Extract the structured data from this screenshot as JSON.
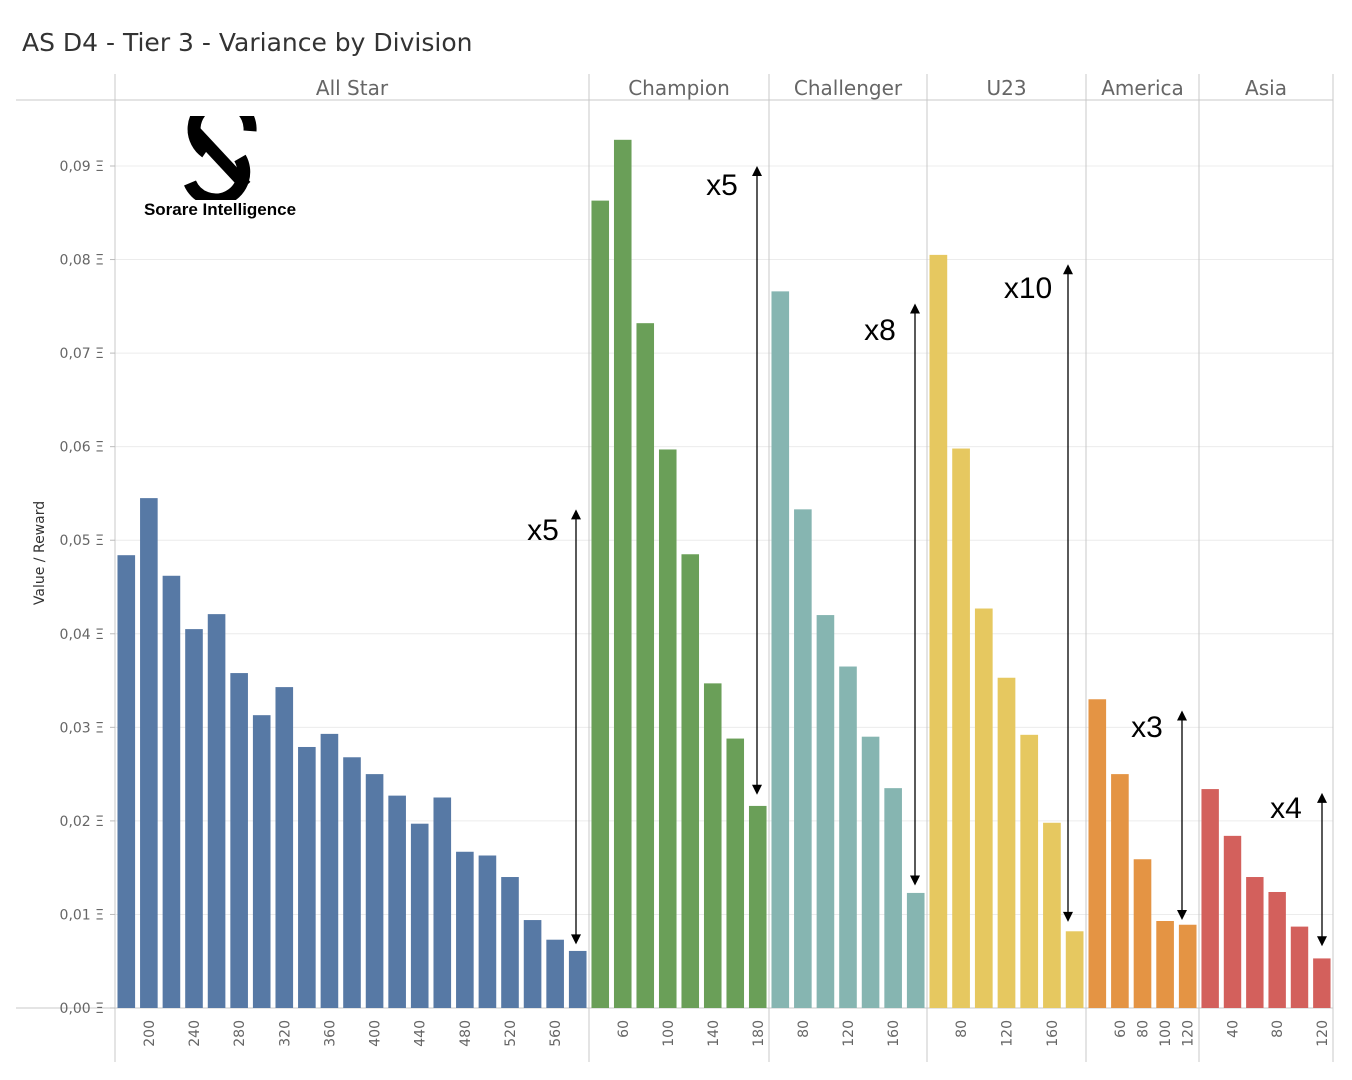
{
  "chart_data": {
    "type": "bar",
    "title": "AS D4 - Tier 3 - Variance by Division",
    "ylabel": "Value / Reward",
    "ylim": [
      0,
      0.1
    ],
    "yticks": [
      {
        "value": 0.0,
        "label": "0,00 Ξ"
      },
      {
        "value": 0.01,
        "label": "0,01 Ξ"
      },
      {
        "value": 0.02,
        "label": "0,02 Ξ"
      },
      {
        "value": 0.03,
        "label": "0,03 Ξ"
      },
      {
        "value": 0.04,
        "label": "0,04 Ξ"
      },
      {
        "value": 0.05,
        "label": "0,05 Ξ"
      },
      {
        "value": 0.06,
        "label": "0,06 Ξ"
      },
      {
        "value": 0.07,
        "label": "0,07 Ξ"
      },
      {
        "value": 0.08,
        "label": "0,08 Ξ"
      },
      {
        "value": 0.09,
        "label": "0,09 Ξ"
      }
    ],
    "grid": true,
    "divisions": [
      {
        "name": "All Star",
        "color": "#5779a5",
        "x": [
          180,
          200,
          220,
          240,
          260,
          280,
          300,
          320,
          340,
          360,
          380,
          400,
          420,
          440,
          460,
          480,
          500,
          520,
          540,
          560,
          580
        ],
        "x_tick_labels": [
          "200",
          "240",
          "280",
          "320",
          "360",
          "400",
          "440",
          "480",
          "520",
          "560"
        ],
        "values": [
          0.0484,
          0.0545,
          0.0462,
          0.0405,
          0.0421,
          0.0358,
          0.0313,
          0.0343,
          0.0279,
          0.0293,
          0.0268,
          0.025,
          0.0227,
          0.0197,
          0.0225,
          0.0167,
          0.0163,
          0.014,
          0.0094,
          0.0073,
          0.0061
        ],
        "annotation": "x5"
      },
      {
        "name": "Champion",
        "color": "#6a9f58",
        "x": [
          40,
          60,
          80,
          100,
          120,
          140,
          160,
          180
        ],
        "x_tick_labels": [
          "60",
          "100",
          "140",
          "180"
        ],
        "values": [
          0.0863,
          0.0928,
          0.0732,
          0.0597,
          0.0485,
          0.0347,
          0.0288,
          0.0216
        ],
        "annotation": "x5"
      },
      {
        "name": "Challenger",
        "color": "#86b5b1",
        "x": [
          60,
          80,
          100,
          120,
          140,
          160,
          180
        ],
        "x_tick_labels": [
          "80",
          "120",
          "160"
        ],
        "values": [
          0.0766,
          0.0533,
          0.042,
          0.0365,
          0.029,
          0.0235,
          0.0123
        ],
        "annotation": "x8"
      },
      {
        "name": "U23",
        "color": "#e6c860",
        "x": [
          60,
          80,
          100,
          120,
          140,
          160,
          180
        ],
        "x_tick_labels": [
          "80",
          "120",
          "160"
        ],
        "values": [
          0.0805,
          0.0598,
          0.0427,
          0.0353,
          0.0292,
          0.0198,
          0.0082
        ],
        "annotation": "x10"
      },
      {
        "name": "America",
        "color": "#e49444",
        "x": [
          40,
          60,
          80,
          100,
          120
        ],
        "x_tick_labels": [
          "60",
          "80",
          "100",
          "120"
        ],
        "values": [
          0.033,
          0.025,
          0.0159,
          0.0093,
          0.0089
        ],
        "annotation": "x3"
      },
      {
        "name": "Asia",
        "color": "#d3605c",
        "x": [
          20,
          40,
          60,
          80,
          100,
          120
        ],
        "x_tick_labels": [
          "40",
          "80",
          "120"
        ],
        "values": [
          0.0234,
          0.0184,
          0.014,
          0.0124,
          0.0087,
          0.0053
        ],
        "annotation": "x4"
      }
    ]
  },
  "logo": {
    "text": "Sorare Intelligence"
  }
}
